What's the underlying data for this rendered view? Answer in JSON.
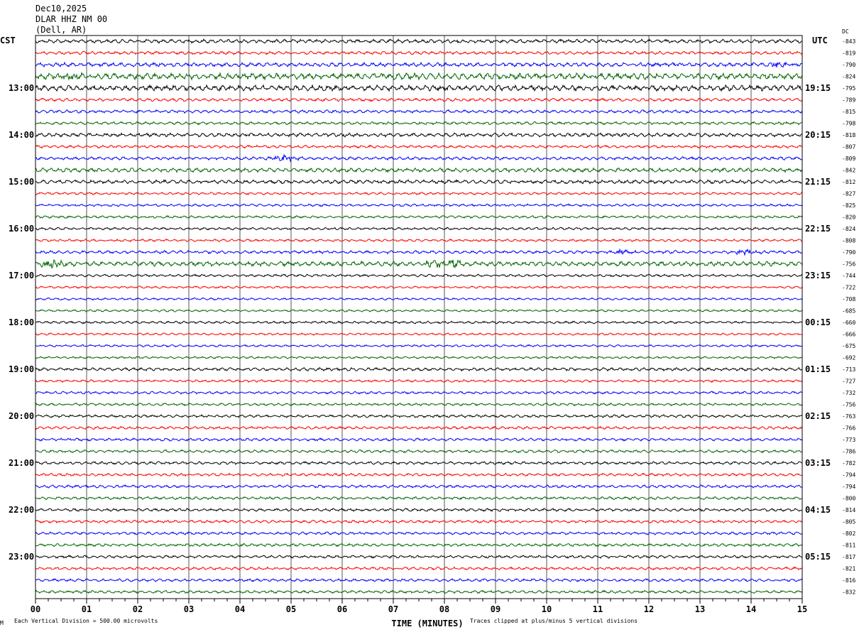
{
  "header": {
    "date": "Dec10,2025",
    "station": "DLAR HHZ NM 00",
    "location": "(Dell, AR)"
  },
  "left_zone": "CST",
  "right_zone": "UTC",
  "dc_label": "DC",
  "footer": {
    "scale": "Each Vertical Division =  500.00 microvolts",
    "clip": "Traces clipped at plus/minus 5 vertical divisions",
    "mark": "M"
  },
  "chart_data": {
    "type": "line",
    "xlabel": "TIME (MINUTES)",
    "xlim": [
      0,
      15
    ],
    "x_ticks": [
      "00",
      "01",
      "02",
      "03",
      "04",
      "05",
      "06",
      "07",
      "08",
      "09",
      "10",
      "11",
      "12",
      "13",
      "14",
      "15"
    ],
    "trace_colors": [
      "#000000",
      "#ff0000",
      "#0000ff",
      "#006400"
    ],
    "left_hour_labels": [
      {
        "trace": 4,
        "label": "13:00"
      },
      {
        "trace": 8,
        "label": "14:00"
      },
      {
        "trace": 12,
        "label": "15:00"
      },
      {
        "trace": 16,
        "label": "16:00"
      },
      {
        "trace": 20,
        "label": "17:00"
      },
      {
        "trace": 24,
        "label": "18:00"
      },
      {
        "trace": 28,
        "label": "19:00"
      },
      {
        "trace": 32,
        "label": "20:00"
      },
      {
        "trace": 36,
        "label": "21:00"
      },
      {
        "trace": 40,
        "label": "22:00"
      },
      {
        "trace": 44,
        "label": "23:00"
      }
    ],
    "right_hour_labels": [
      {
        "trace": 4,
        "label": "19:15"
      },
      {
        "trace": 8,
        "label": "20:15"
      },
      {
        "trace": 12,
        "label": "21:15"
      },
      {
        "trace": 16,
        "label": "22:15"
      },
      {
        "trace": 20,
        "label": "23:15"
      },
      {
        "trace": 24,
        "label": "00:15"
      },
      {
        "trace": 28,
        "label": "01:15"
      },
      {
        "trace": 32,
        "label": "02:15"
      },
      {
        "trace": 36,
        "label": "03:15"
      },
      {
        "trace": 40,
        "label": "04:15"
      },
      {
        "trace": 44,
        "label": "05:15"
      }
    ],
    "dc_offsets": [
      -843,
      -819,
      -790,
      -824,
      -795,
      -789,
      -815,
      -798,
      -818,
      -807,
      -809,
      -842,
      -812,
      -827,
      -825,
      -820,
      -824,
      -808,
      -790,
      -756,
      -744,
      -722,
      -708,
      -685,
      -660,
      -666,
      -675,
      -692,
      -713,
      -727,
      -732,
      -756,
      -763,
      -766,
      -773,
      -786,
      -782,
      -794,
      -794,
      -800,
      -814,
      -805,
      -802,
      -811,
      -817,
      -821,
      -816,
      -832
    ],
    "noise_level": [
      1.2,
      1.0,
      1.3,
      2.0,
      1.8,
      1.0,
      1.0,
      0.9,
      1.2,
      0.9,
      1.0,
      1.3,
      1.2,
      0.8,
      0.8,
      0.8,
      0.8,
      0.8,
      1.0,
      1.5,
      0.8,
      0.7,
      0.7,
      0.7,
      0.8,
      0.7,
      0.7,
      0.7,
      1.0,
      0.8,
      0.8,
      0.8,
      0.9,
      0.9,
      0.9,
      0.9,
      0.9,
      0.9,
      0.9,
      0.9,
      0.9,
      0.9,
      0.9,
      0.9,
      0.9,
      0.9,
      0.9,
      0.9
    ],
    "events": [
      {
        "trace": 2,
        "minute": 14.5,
        "amp": 4
      },
      {
        "trace": 3,
        "minute": 0.7,
        "amp": 4
      },
      {
        "trace": 10,
        "minute": 4.85,
        "amp": 5
      },
      {
        "trace": 18,
        "minute": 11.45,
        "amp": 4
      },
      {
        "trace": 18,
        "minute": 13.9,
        "amp": 4
      },
      {
        "trace": 19,
        "minute": 0.3,
        "amp": 8
      },
      {
        "trace": 19,
        "minute": 7.8,
        "amp": 5
      },
      {
        "trace": 19,
        "minute": 8.15,
        "amp": 5
      }
    ]
  }
}
